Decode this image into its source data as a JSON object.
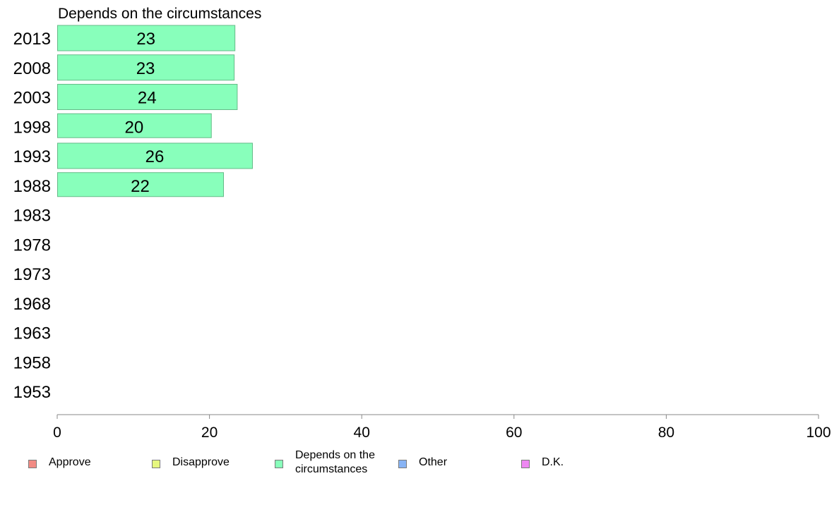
{
  "chart_data": {
    "type": "bar",
    "orientation": "horizontal",
    "title": "Depends on the circumstances",
    "categories": [
      "2013",
      "2008",
      "2003",
      "1998",
      "1993",
      "1988",
      "1983",
      "1978",
      "1973",
      "1968",
      "1963",
      "1958",
      "1953"
    ],
    "series": [
      {
        "name": "Depends on the circumstances",
        "values": [
          23.3,
          23.2,
          23.6,
          20.2,
          25.6,
          21.8,
          null,
          null,
          null,
          null,
          null,
          null,
          null
        ],
        "labels": [
          "23",
          "23",
          "24",
          "20",
          "26",
          "22",
          "",
          "",
          "",
          "",
          "",
          "",
          ""
        ]
      }
    ],
    "xlim": [
      0,
      100
    ],
    "xticks": [
      "0",
      "20",
      "40",
      "60",
      "80",
      "100"
    ],
    "grid": false,
    "bar_color": "#88ffbb",
    "bar_border": "#66bb88",
    "legend": {
      "placement": "bottom",
      "items": [
        {
          "label": "Approve",
          "color": "#f28b84"
        },
        {
          "label": "Disapprove",
          "color": "#e6f77f"
        },
        {
          "label": "Depends on the\ncircumstances",
          "color": "#88ffbb"
        },
        {
          "label": "Other",
          "color": "#88b4f5"
        },
        {
          "label": "D.K.",
          "color": "#ee88f2"
        }
      ]
    }
  }
}
